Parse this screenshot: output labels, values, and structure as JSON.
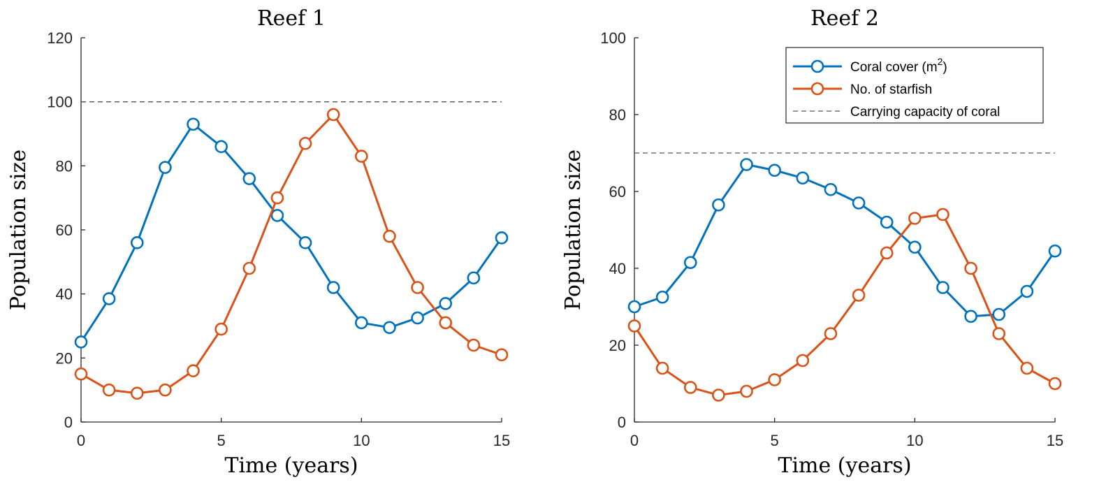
{
  "chart_data": [
    {
      "type": "line",
      "title": "Reef 1",
      "xlabel": "Time (years)",
      "ylabel": "Population size",
      "xlim": [
        0,
        15
      ],
      "ylim": [
        0,
        120
      ],
      "xticks": [
        "0",
        "5",
        "10",
        "15"
      ],
      "yticks": [
        "0",
        "20",
        "40",
        "60",
        "80",
        "100",
        "120"
      ],
      "x": [
        0,
        1,
        2,
        3,
        4,
        5,
        6,
        7,
        8,
        9,
        10,
        11,
        12,
        13,
        14,
        15
      ],
      "series": [
        {
          "name": "Coral cover (m2)",
          "color": "#0072BD",
          "marker": "circle",
          "values": [
            25,
            38.5,
            56,
            79.5,
            93,
            86,
            76,
            64.5,
            56,
            42,
            31,
            29.5,
            32.5,
            37,
            45,
            57.5
          ]
        },
        {
          "name": "No. of starfish",
          "color": "#D95319",
          "marker": "circle",
          "values": [
            15,
            10,
            9,
            10,
            16,
            29,
            48,
            70,
            87,
            96,
            83,
            58,
            42,
            31,
            24,
            21
          ]
        }
      ],
      "reference_line": {
        "name": "Carrying capacity of coral",
        "value": 100,
        "style": "dashed",
        "color": "#555555"
      },
      "grid": false
    },
    {
      "type": "line",
      "title": "Reef 2",
      "xlabel": "Time (years)",
      "ylabel": "Population size",
      "xlim": [
        0,
        15
      ],
      "ylim": [
        0,
        100
      ],
      "xticks": [
        "0",
        "5",
        "10",
        "15"
      ],
      "yticks": [
        "0",
        "20",
        "40",
        "60",
        "80",
        "100"
      ],
      "x": [
        0,
        1,
        2,
        3,
        4,
        5,
        6,
        7,
        8,
        9,
        10,
        11,
        12,
        13,
        14,
        15
      ],
      "series": [
        {
          "name": "Coral cover (m2)",
          "color": "#0072BD",
          "marker": "circle",
          "values": [
            30,
            32.5,
            41.5,
            56.5,
            67,
            65.5,
            63.5,
            60.5,
            57,
            52,
            45.5,
            35,
            27.5,
            28,
            34,
            44.5
          ]
        },
        {
          "name": "No. of starfish",
          "color": "#D95319",
          "marker": "circle",
          "values": [
            25,
            14,
            9,
            7,
            8,
            11,
            16,
            23,
            33,
            44,
            53,
            54,
            40,
            23,
            14,
            10
          ]
        }
      ],
      "reference_line": {
        "name": "Carrying capacity of coral",
        "value": 70,
        "style": "dashed",
        "color": "#555555"
      },
      "grid": false,
      "legend": {
        "placement": "top-right",
        "entries": [
          {
            "label_main": "Coral cover (m",
            "label_sup": "2",
            "label_end": ")",
            "color": "#0072BD",
            "style": "solid-circle"
          },
          {
            "label_main": "No. of starfish",
            "color": "#D95319",
            "style": "solid-circle"
          },
          {
            "label_main": "Carrying capacity of coral",
            "color": "#555555",
            "style": "dashed"
          }
        ]
      }
    }
  ]
}
